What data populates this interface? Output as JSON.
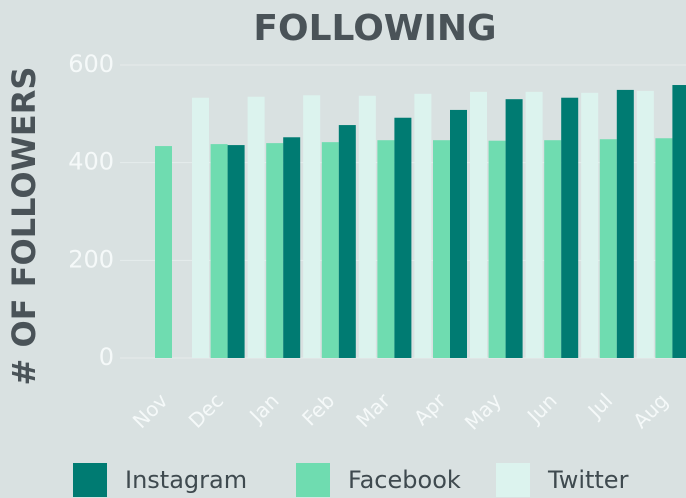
{
  "chart_data": {
    "type": "bar",
    "title": "FOLLOWING",
    "y_label": "# OF FOLLOWERS",
    "categories": [
      "Nov",
      "Dec",
      "Jan",
      "Feb",
      "Mar",
      "Apr",
      "May",
      "Jun",
      "Jul",
      "Aug"
    ],
    "series": [
      {
        "name": "Instagram",
        "color": "#007b72",
        "values": [
          null,
          436,
          452,
          477,
          492,
          508,
          530,
          533,
          549,
          559
        ]
      },
      {
        "name": "Facebook",
        "color": "#6fdcb0",
        "values": [
          434,
          438,
          440,
          442,
          446,
          446,
          445,
          446,
          448,
          450
        ]
      },
      {
        "name": "Twitter",
        "color": "#dcf3ee",
        "values": [
          533,
          535,
          538,
          537,
          541,
          545,
          545,
          543,
          547,
          null
        ]
      }
    ],
    "ylim": [
      0,
      600
    ],
    "yticks": [
      0,
      200,
      400,
      600
    ],
    "grid": true
  }
}
